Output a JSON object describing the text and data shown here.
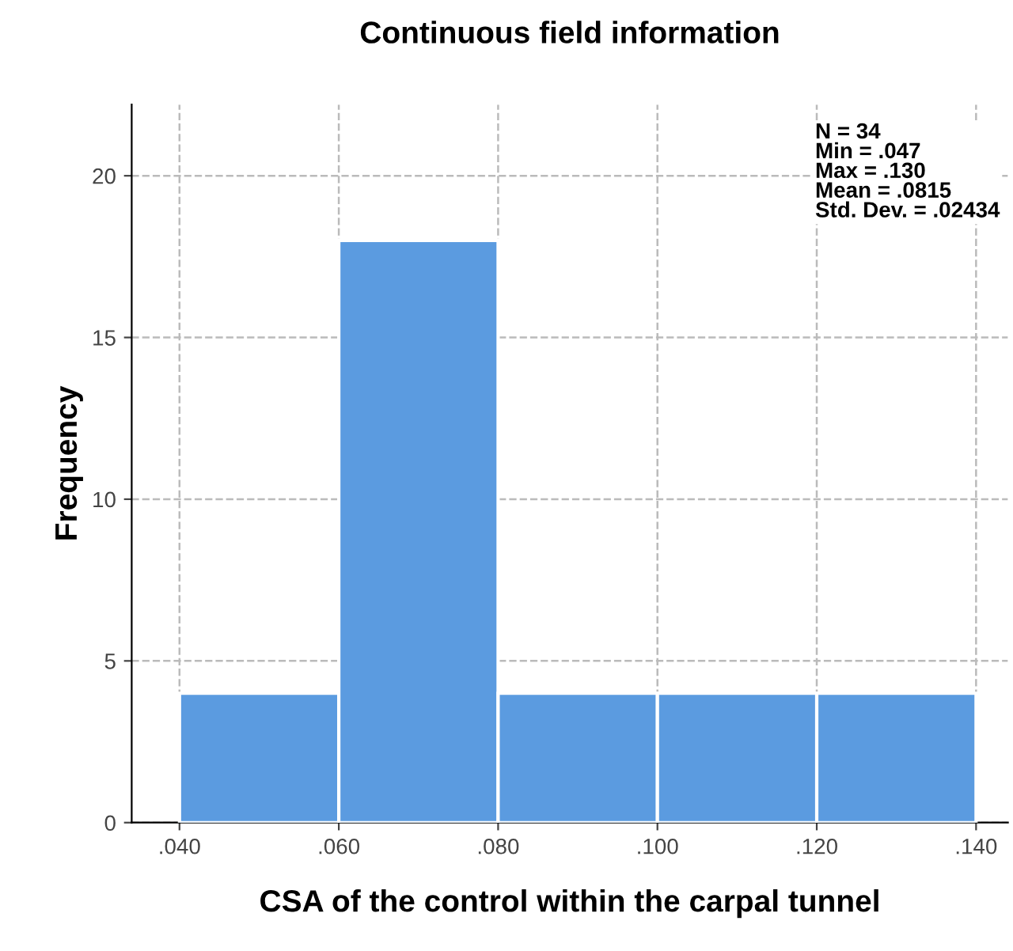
{
  "chart_data": {
    "type": "histogram",
    "title": "Continuous field information",
    "xlabel": "CSA of the control within the carpal tunnel",
    "ylabel": "Frequency",
    "bins": [
      0.04,
      0.06,
      0.08,
      0.1,
      0.12,
      0.14
    ],
    "values": [
      4,
      18,
      4,
      4,
      4
    ],
    "color": "#5b9be0",
    "xlim": [
      0.034,
      0.144
    ],
    "ylim": [
      0,
      22.2
    ],
    "xticks": [
      {
        "value": 0.04,
        "label": ".040"
      },
      {
        "value": 0.06,
        "label": ".060"
      },
      {
        "value": 0.08,
        "label": ".080"
      },
      {
        "value": 0.1,
        "label": ".100"
      },
      {
        "value": 0.12,
        "label": ".120"
      },
      {
        "value": 0.14,
        "label": ".140"
      }
    ],
    "yticks": [
      0,
      5,
      10,
      15,
      20
    ],
    "grid": true,
    "line_style": "dashed",
    "annotations": [
      "N = 34\nMin = .047\nMax = .130\nMean = .0815\nStd. Dev. = .02434"
    ]
  }
}
